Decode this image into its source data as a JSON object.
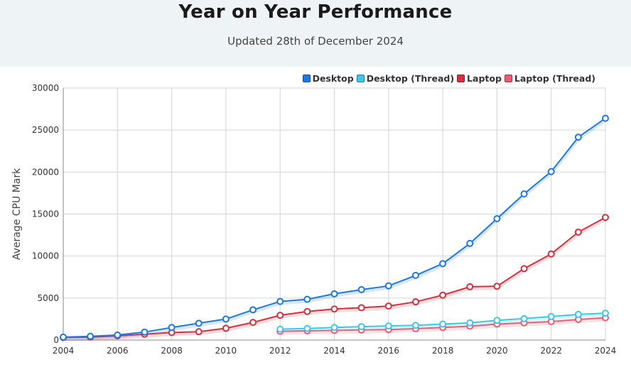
{
  "header": {
    "title": "Year on Year Performance",
    "subtitle": "Updated 28th of December 2024"
  },
  "chart_data": {
    "type": "line",
    "ylabel": "Average CPU Mark",
    "xlabel": "",
    "xlim": [
      2004,
      2024
    ],
    "ylim": [
      0,
      30000
    ],
    "x_ticks": [
      "2004",
      "2006",
      "2008",
      "2010",
      "2012",
      "2014",
      "2016",
      "2018",
      "2020",
      "2022",
      "2024"
    ],
    "y_ticks": [
      "0",
      "5000",
      "10000",
      "15000",
      "20000",
      "25000",
      "30000"
    ],
    "grid": true,
    "legend_position": "top-right",
    "series": [
      {
        "name": "Desktop",
        "color": "#1f78e0",
        "x": [
          2004,
          2005,
          2006,
          2007,
          2008,
          2009,
          2010,
          2011,
          2012,
          2013,
          2014,
          2015,
          2016,
          2017,
          2018,
          2019,
          2020,
          2021,
          2022,
          2023,
          2024
        ],
        "values": [
          350,
          450,
          600,
          950,
          1500,
          2000,
          2500,
          3600,
          4600,
          4850,
          5500,
          6000,
          6450,
          7700,
          9100,
          11500,
          14450,
          17400,
          20050,
          24150,
          26400
        ]
      },
      {
        "name": "Desktop (Thread)",
        "color": "#3ec6ee",
        "x": [
          2012,
          2013,
          2014,
          2015,
          2016,
          2017,
          2018,
          2019,
          2020,
          2021,
          2022,
          2023,
          2024
        ],
        "values": [
          1300,
          1380,
          1500,
          1600,
          1680,
          1750,
          1900,
          2050,
          2350,
          2550,
          2800,
          3050,
          3200
        ]
      },
      {
        "name": "Laptop",
        "color": "#d63040",
        "x": [
          2004,
          2005,
          2006,
          2007,
          2008,
          2009,
          2010,
          2011,
          2012,
          2013,
          2014,
          2015,
          2016,
          2017,
          2018,
          2019,
          2020,
          2021,
          2022,
          2023,
          2024
        ],
        "values": [
          300,
          350,
          500,
          700,
          900,
          1000,
          1400,
          2100,
          2950,
          3400,
          3700,
          3850,
          4050,
          4550,
          5350,
          6350,
          6400,
          8500,
          10250,
          12850,
          14600
        ]
      },
      {
        "name": "Laptop (Thread)",
        "color": "#f05a70",
        "x": [
          2012,
          2013,
          2014,
          2015,
          2016,
          2017,
          2018,
          2019,
          2020,
          2021,
          2022,
          2023,
          2024
        ],
        "values": [
          1050,
          1100,
          1150,
          1200,
          1250,
          1350,
          1500,
          1650,
          1900,
          2050,
          2200,
          2450,
          2650
        ]
      }
    ]
  }
}
